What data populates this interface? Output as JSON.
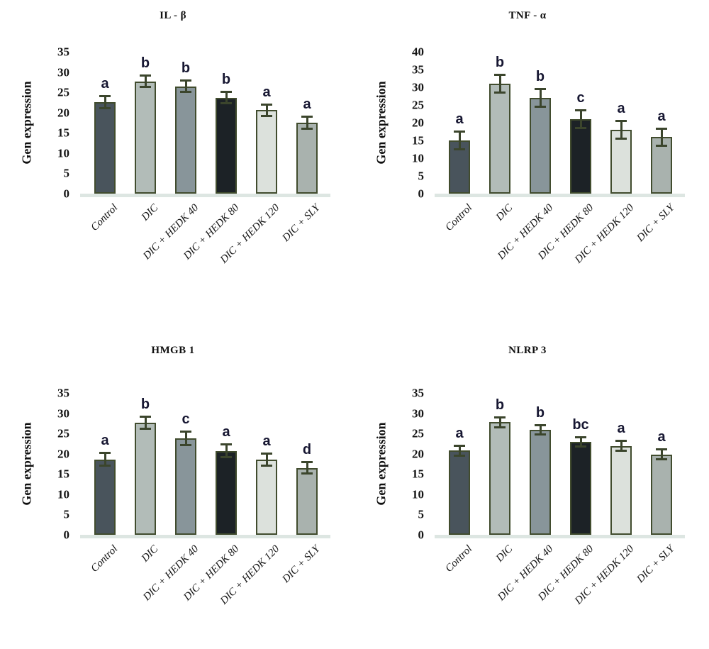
{
  "figure": {
    "background": "#ffffff",
    "ylabel": "Gen expression",
    "categories": [
      "Control",
      "DIC",
      "DIC + HEDK 40",
      "DIC + HEDK 80",
      "DIC + HEDK 120",
      "DIC + SLY"
    ],
    "bar_colors": [
      "#49545c",
      "#b2bcb8",
      "#88959a",
      "#1c2226",
      "#dce1dc",
      "#a9b2ae"
    ],
    "bar_border_color": "#414c2e",
    "error_bar_color": "#3b452c",
    "letter_color": "#171732",
    "baseline_color": "#dde6e2",
    "text_color": "#141414"
  },
  "chart_data": [
    {
      "type": "bar",
      "title": "IL - β",
      "ylabel": "Gen expression",
      "xlabel": "",
      "ylim": [
        0,
        35
      ],
      "ytick_step": 5,
      "grid": false,
      "legend": "none",
      "categories": [
        "Control",
        "DIC",
        "DIC + HEDK 40",
        "DIC + HEDK 80",
        "DIC + HEDK 120",
        "DIC + SLY"
      ],
      "values": [
        22.6,
        27.7,
        26.5,
        23.7,
        20.6,
        17.5
      ],
      "errors": [
        1.6,
        1.5,
        1.5,
        1.5,
        1.5,
        1.6
      ],
      "letters": [
        "a",
        "b",
        "b",
        "b",
        "a",
        "a"
      ]
    },
    {
      "type": "bar",
      "title": "TNF - α",
      "ylabel": "Gen expression",
      "xlabel": "",
      "ylim": [
        0,
        40
      ],
      "ytick_step": 5,
      "grid": false,
      "legend": "none",
      "categories": [
        "Control",
        "DIC",
        "DIC + HEDK 40",
        "DIC + HEDK 80",
        "DIC + HEDK 120",
        "DIC + SLY"
      ],
      "values": [
        15,
        31,
        27,
        21,
        18,
        16
      ],
      "errors": [
        2.6,
        2.6,
        2.6,
        2.6,
        2.6,
        2.5
      ],
      "letters": [
        "a",
        "b",
        "b",
        "c",
        "a",
        "a"
      ]
    },
    {
      "type": "bar",
      "title": "HMGB 1",
      "ylabel": "Gen expression",
      "xlabel": "",
      "ylim": [
        0,
        35
      ],
      "ytick_step": 5,
      "grid": false,
      "legend": "none",
      "categories": [
        "Control",
        "DIC",
        "DIC + HEDK 40",
        "DIC + HEDK 80",
        "DIC + HEDK 120",
        "DIC + SLY"
      ],
      "values": [
        18.6,
        27.6,
        23.8,
        20.7,
        18.6,
        16.5
      ],
      "errors": [
        1.7,
        1.6,
        1.7,
        1.7,
        1.6,
        1.5
      ],
      "letters": [
        "a",
        "b",
        "c",
        "a",
        "a",
        "d"
      ]
    },
    {
      "type": "bar",
      "title": "NLRP 3",
      "ylabel": "Gen expression",
      "xlabel": "",
      "ylim": [
        0,
        35
      ],
      "ytick_step": 5,
      "grid": false,
      "legend": "none",
      "categories": [
        "Control",
        "DIC",
        "DIC + HEDK 40",
        "DIC + HEDK 80",
        "DIC + HEDK 120",
        "DIC + SLY"
      ],
      "values": [
        20.8,
        27.8,
        25.9,
        22.9,
        21.9,
        19.8
      ],
      "errors": [
        1.3,
        1.3,
        1.3,
        1.2,
        1.3,
        1.3
      ],
      "letters": [
        "a",
        "b",
        "b",
        "bc",
        "a",
        "a"
      ]
    }
  ]
}
